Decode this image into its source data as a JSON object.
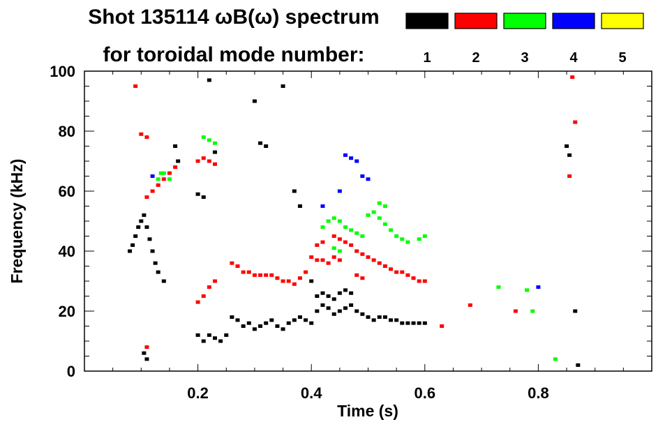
{
  "chart_data": {
    "type": "heatmap",
    "title": "Shot 135114 ωB(ω) spectrum",
    "subtitle": "for toroidal mode number:",
    "xlabel": "Time (s)",
    "ylabel": "Frequency (kHz)",
    "xlim": [
      0.0,
      1.0
    ],
    "ylim": [
      0,
      100
    ],
    "x_ticks": [
      {
        "value": 0.2,
        "label": "0.2"
      },
      {
        "value": 0.4,
        "label": "0.4"
      },
      {
        "value": 0.6,
        "label": "0.6"
      },
      {
        "value": 0.8,
        "label": "0.8"
      }
    ],
    "y_ticks": [
      {
        "value": 0,
        "label": "0"
      },
      {
        "value": 20,
        "label": "20"
      },
      {
        "value": 40,
        "label": "40"
      },
      {
        "value": 60,
        "label": "60"
      },
      {
        "value": 80,
        "label": "80"
      },
      {
        "value": 100,
        "label": "100"
      }
    ],
    "legend_placement": "top-right",
    "legend": [
      {
        "label": "1",
        "color": "#000000"
      },
      {
        "label": "2",
        "color": "#ff0000"
      },
      {
        "label": "3",
        "color": "#00ff00"
      },
      {
        "label": "4",
        "color": "#0000ff"
      },
      {
        "label": "5",
        "color": "#ffff00"
      }
    ],
    "series": [
      {
        "mode": 1,
        "color": "#000000",
        "points": [
          [
            0.08,
            40
          ],
          [
            0.085,
            42
          ],
          [
            0.09,
            45
          ],
          [
            0.095,
            48
          ],
          [
            0.1,
            50
          ],
          [
            0.105,
            52
          ],
          [
            0.11,
            48
          ],
          [
            0.115,
            44
          ],
          [
            0.12,
            40
          ],
          [
            0.125,
            36
          ],
          [
            0.13,
            33
          ],
          [
            0.14,
            30
          ],
          [
            0.105,
            6
          ],
          [
            0.11,
            4
          ],
          [
            0.2,
            12
          ],
          [
            0.21,
            10
          ],
          [
            0.22,
            12
          ],
          [
            0.23,
            11
          ],
          [
            0.24,
            10
          ],
          [
            0.25,
            12
          ],
          [
            0.26,
            18
          ],
          [
            0.27,
            17
          ],
          [
            0.28,
            15
          ],
          [
            0.29,
            16
          ],
          [
            0.3,
            14
          ],
          [
            0.31,
            15
          ],
          [
            0.32,
            16
          ],
          [
            0.33,
            17
          ],
          [
            0.34,
            15
          ],
          [
            0.35,
            14
          ],
          [
            0.36,
            16
          ],
          [
            0.37,
            17
          ],
          [
            0.38,
            18
          ],
          [
            0.39,
            17
          ],
          [
            0.4,
            16
          ],
          [
            0.41,
            20
          ],
          [
            0.42,
            22
          ],
          [
            0.43,
            21
          ],
          [
            0.44,
            19
          ],
          [
            0.45,
            20
          ],
          [
            0.46,
            21
          ],
          [
            0.47,
            22
          ],
          [
            0.48,
            20
          ],
          [
            0.49,
            19
          ],
          [
            0.5,
            18
          ],
          [
            0.51,
            17
          ],
          [
            0.52,
            18
          ],
          [
            0.53,
            18
          ],
          [
            0.54,
            17
          ],
          [
            0.55,
            17
          ],
          [
            0.56,
            16
          ],
          [
            0.57,
            16
          ],
          [
            0.58,
            16
          ],
          [
            0.59,
            16
          ],
          [
            0.6,
            16
          ],
          [
            0.31,
            76
          ],
          [
            0.32,
            75
          ],
          [
            0.23,
            73
          ],
          [
            0.2,
            59
          ],
          [
            0.21,
            58
          ],
          [
            0.4,
            30
          ],
          [
            0.41,
            25
          ],
          [
            0.42,
            26
          ],
          [
            0.43,
            25
          ],
          [
            0.44,
            24
          ],
          [
            0.45,
            26
          ],
          [
            0.46,
            27
          ],
          [
            0.47,
            26
          ],
          [
            0.16,
            75
          ],
          [
            0.165,
            70
          ],
          [
            0.85,
            75
          ],
          [
            0.855,
            72
          ],
          [
            0.865,
            20
          ],
          [
            0.87,
            2
          ],
          [
            0.22,
            97
          ],
          [
            0.3,
            90
          ],
          [
            0.35,
            95
          ],
          [
            0.37,
            60
          ],
          [
            0.38,
            55
          ]
        ]
      },
      {
        "mode": 2,
        "color": "#ff0000",
        "points": [
          [
            0.11,
            58
          ],
          [
            0.12,
            60
          ],
          [
            0.13,
            62
          ],
          [
            0.14,
            64
          ],
          [
            0.15,
            66
          ],
          [
            0.16,
            68
          ],
          [
            0.2,
            70
          ],
          [
            0.21,
            71
          ],
          [
            0.22,
            70
          ],
          [
            0.23,
            69
          ],
          [
            0.1,
            79
          ],
          [
            0.11,
            78
          ],
          [
            0.2,
            23
          ],
          [
            0.21,
            25
          ],
          [
            0.22,
            28
          ],
          [
            0.23,
            30
          ],
          [
            0.26,
            36
          ],
          [
            0.27,
            35
          ],
          [
            0.28,
            33
          ],
          [
            0.29,
            33
          ],
          [
            0.3,
            32
          ],
          [
            0.31,
            32
          ],
          [
            0.32,
            32
          ],
          [
            0.33,
            32
          ],
          [
            0.34,
            31
          ],
          [
            0.35,
            30
          ],
          [
            0.36,
            30
          ],
          [
            0.37,
            29
          ],
          [
            0.38,
            31
          ],
          [
            0.39,
            33
          ],
          [
            0.4,
            38
          ],
          [
            0.41,
            37
          ],
          [
            0.42,
            37
          ],
          [
            0.43,
            36
          ],
          [
            0.44,
            38
          ],
          [
            0.45,
            37
          ],
          [
            0.46,
            43
          ],
          [
            0.47,
            42
          ],
          [
            0.48,
            40
          ],
          [
            0.49,
            39
          ],
          [
            0.5,
            38
          ],
          [
            0.51,
            37
          ],
          [
            0.52,
            36
          ],
          [
            0.53,
            35
          ],
          [
            0.54,
            34
          ],
          [
            0.55,
            33
          ],
          [
            0.56,
            33
          ],
          [
            0.57,
            32
          ],
          [
            0.58,
            31
          ],
          [
            0.59,
            30
          ],
          [
            0.6,
            30
          ],
          [
            0.48,
            32
          ],
          [
            0.49,
            31
          ],
          [
            0.41,
            42
          ],
          [
            0.42,
            43
          ],
          [
            0.44,
            45
          ],
          [
            0.45,
            44
          ],
          [
            0.63,
            15
          ],
          [
            0.68,
            22
          ],
          [
            0.76,
            20
          ],
          [
            0.86,
            98
          ],
          [
            0.865,
            83
          ],
          [
            0.855,
            65
          ],
          [
            0.11,
            8
          ],
          [
            0.09,
            95
          ]
        ]
      },
      {
        "mode": 3,
        "color": "#00ff00",
        "points": [
          [
            0.13,
            64
          ],
          [
            0.135,
            66
          ],
          [
            0.14,
            66
          ],
          [
            0.15,
            64
          ],
          [
            0.21,
            78
          ],
          [
            0.22,
            77
          ],
          [
            0.23,
            76
          ],
          [
            0.42,
            48
          ],
          [
            0.43,
            50
          ],
          [
            0.44,
            51
          ],
          [
            0.45,
            50
          ],
          [
            0.46,
            48
          ],
          [
            0.47,
            47
          ],
          [
            0.48,
            46
          ],
          [
            0.49,
            45
          ],
          [
            0.5,
            52
          ],
          [
            0.51,
            53
          ],
          [
            0.52,
            51
          ],
          [
            0.53,
            49
          ],
          [
            0.54,
            47
          ],
          [
            0.55,
            45
          ],
          [
            0.56,
            44
          ],
          [
            0.57,
            43
          ],
          [
            0.6,
            45
          ],
          [
            0.44,
            41
          ],
          [
            0.45,
            40
          ],
          [
            0.52,
            56
          ],
          [
            0.53,
            55
          ],
          [
            0.59,
            44
          ],
          [
            0.73,
            28
          ],
          [
            0.78,
            27
          ],
          [
            0.79,
            20
          ],
          [
            0.83,
            4
          ]
        ]
      },
      {
        "mode": 4,
        "color": "#0000ff",
        "points": [
          [
            0.12,
            65
          ],
          [
            0.46,
            72
          ],
          [
            0.47,
            71
          ],
          [
            0.48,
            70
          ],
          [
            0.49,
            65
          ],
          [
            0.5,
            64
          ],
          [
            0.42,
            55
          ],
          [
            0.45,
            60
          ],
          [
            0.8,
            28
          ]
        ]
      }
    ]
  }
}
